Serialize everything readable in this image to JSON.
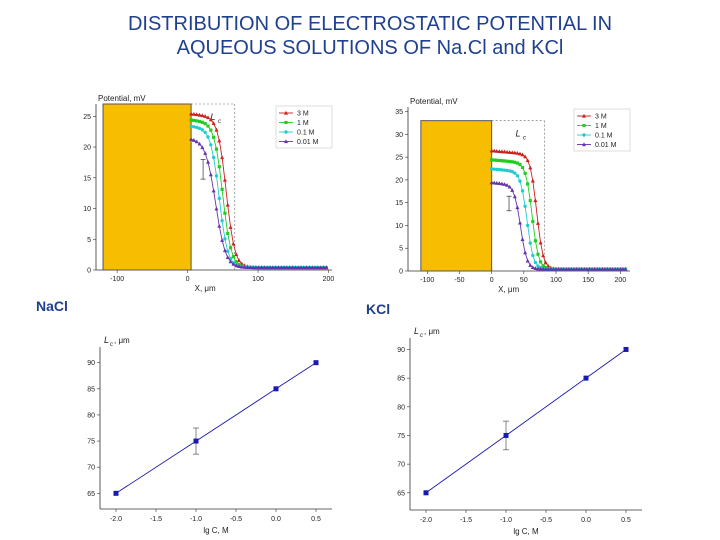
{
  "title_line1": "DISTRIBUTION OF ELECTROSTATIC POTENTIAL IN",
  "title_line2": "AQUEOUS SOLUTIONS OF Na.Cl and KCl",
  "labels": {
    "nacl": "NaCl",
    "kcl": "KCl"
  },
  "colors": {
    "title": "#1f3f8f",
    "wall": "#f7bd00",
    "s3M": "#cc1f1f",
    "s1M": "#22cc22",
    "s01M": "#22cccc",
    "s001M": "#6633aa",
    "lc": "#1a1ab0"
  },
  "chart_data": [
    {
      "id": "nacl-potential",
      "type": "line",
      "ylabel": "Potential, mV",
      "xlabel": "X, μm",
      "marker": "L",
      "marker_sub": "c",
      "xlim": [
        -130,
        205
      ],
      "ylim": [
        0,
        27
      ],
      "xticks": [
        -100,
        0,
        100,
        200
      ],
      "yticks": [
        0,
        5,
        10,
        15,
        20,
        25
      ],
      "legend_position": "top-right",
      "wall": {
        "x_start": -120,
        "x_end": 5,
        "potential": 27
      },
      "series": [
        {
          "name": "3 M",
          "v0": 25.0,
          "x_half": 55,
          "width": 6
        },
        {
          "name": "1 M",
          "v0": 24.0,
          "x_half": 50,
          "width": 6
        },
        {
          "name": "0.1 M",
          "v0": 23.0,
          "x_half": 45,
          "width": 6
        },
        {
          "name": "0.01 M",
          "v0": 21.0,
          "x_half": 40,
          "width": 7
        }
      ]
    },
    {
      "id": "kcl-potential",
      "type": "line",
      "ylabel": "Potential, mV",
      "xlabel": "X, μm",
      "marker": "L",
      "marker_sub": "c",
      "xlim": [
        -130,
        215
      ],
      "ylim": [
        0,
        36
      ],
      "xticks": [
        -100,
        -50,
        0,
        50,
        100,
        150,
        200
      ],
      "yticks": [
        0,
        5,
        10,
        15,
        20,
        25,
        30,
        35
      ],
      "legend_position": "top-right",
      "wall": {
        "x_start": -110,
        "x_end": 0,
        "potential": 33
      },
      "series": [
        {
          "name": "3 M",
          "v0": 26.0,
          "x_half": 70,
          "width": 5
        },
        {
          "name": "1 M",
          "v0": 24.0,
          "x_half": 63,
          "width": 5
        },
        {
          "name": "0.1 M",
          "v0": 22.0,
          "x_half": 55,
          "width": 5
        },
        {
          "name": "0.01 M",
          "v0": 19.0,
          "x_half": 45,
          "width": 5
        }
      ]
    },
    {
      "id": "nacl-lc",
      "type": "line",
      "ylabel": "L",
      "ylabel_sub": "c",
      "ylabel_unit": ", μm",
      "xlabel": "lg C, M",
      "xlim": [
        -2.2,
        0.7
      ],
      "ylim": [
        62,
        93
      ],
      "xticks": [
        -2.0,
        -1.5,
        -1.0,
        -0.5,
        0.0,
        0.5
      ],
      "yticks": [
        65,
        70,
        75,
        80,
        85,
        90
      ],
      "points": [
        {
          "x": -2.0,
          "y": 65
        },
        {
          "x": -1.0,
          "y": 75,
          "err": 2.5
        },
        {
          "x": 0.0,
          "y": 85
        },
        {
          "x": 0.5,
          "y": 90
        }
      ]
    },
    {
      "id": "kcl-lc",
      "type": "line",
      "ylabel": "L",
      "ylabel_sub": "c",
      "ylabel_unit": ", μm",
      "xlabel": "lg C, M",
      "xlim": [
        -2.2,
        0.7
      ],
      "ylim": [
        62,
        92
      ],
      "xticks": [
        -2.0,
        -1.5,
        -1.0,
        -0.5,
        0.0,
        0.5
      ],
      "yticks": [
        65,
        70,
        75,
        80,
        85,
        90
      ],
      "points": [
        {
          "x": -2.0,
          "y": 65
        },
        {
          "x": -1.0,
          "y": 75,
          "err": 2.5
        },
        {
          "x": 0.0,
          "y": 85
        },
        {
          "x": 0.5,
          "y": 90
        }
      ]
    }
  ]
}
